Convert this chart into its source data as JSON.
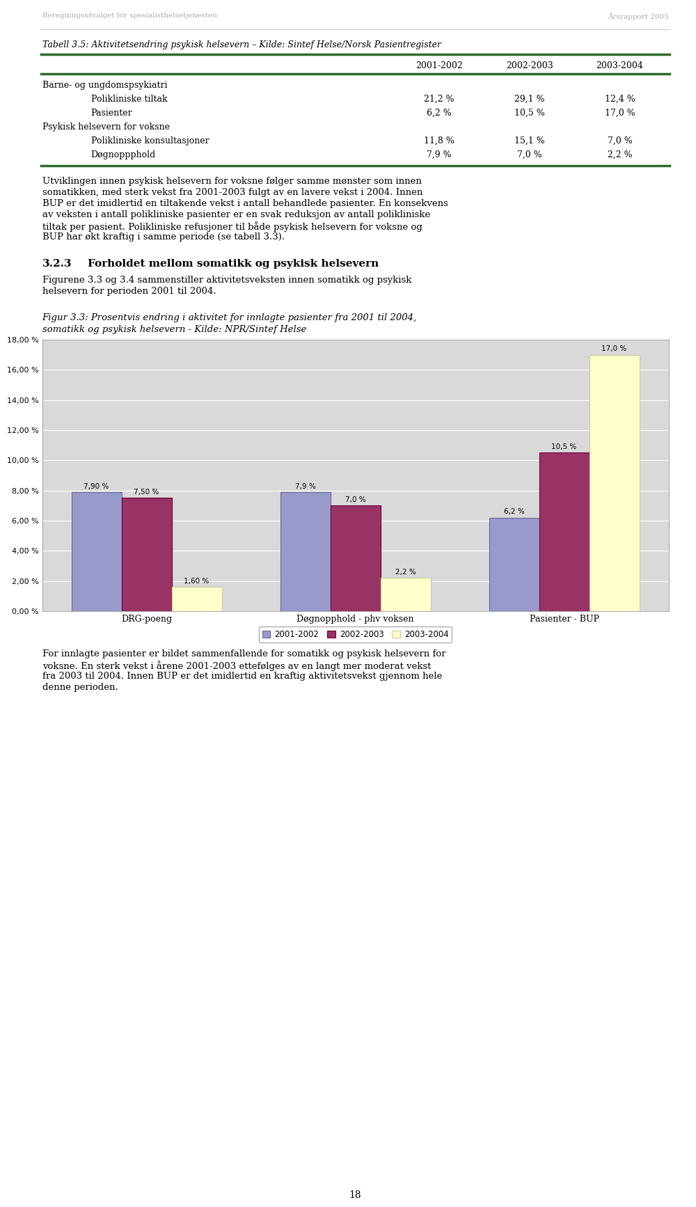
{
  "page_bg": "#ffffff",
  "header_left": "Beregningsutvalget for spesialisthelsetjenesten",
  "header_right": "Årsrapport 2005",
  "header_color": "#aaaaaa",
  "table_title": "Tabell 3.5: Aktivitetsendring psykisk helsevern – Kilde: Sintef Helse/Norsk Pasientregister",
  "table_col_headers": [
    "2001-2002",
    "2002-2003",
    "2003-2004"
  ],
  "table_rows": [
    [
      "Barne- og ungdomspsykiatri",
      "",
      "",
      ""
    ],
    [
      "Polikliniske tiltak",
      "21,2 %",
      "29,1 %",
      "12,4 %"
    ],
    [
      "Pasienter",
      "6,2 %",
      "10,5 %",
      "17,0 %"
    ],
    [
      "Psykisk helsevern for voksne",
      "",
      "",
      ""
    ],
    [
      "Polikliniske konsultasjoner",
      "11,8 %",
      "15,1 %",
      "7,0 %"
    ],
    [
      "Døgnoppphold",
      "7,9 %",
      "7,0 %",
      "2,2 %"
    ]
  ],
  "table_row_indent": [
    false,
    true,
    true,
    false,
    true,
    true
  ],
  "table_green": "#2d6a2d",
  "lines1": [
    "Utviklingen innen psykisk helsevern for voksne følger samme mønster som innen",
    "somatikken, med sterk vekst fra 2001-2003 fulgt av en lavere vekst i 2004. Innen",
    "BUP er det imidlertid en tiltakende vekst i antall behandlede pasienter. En konsekvens",
    "av veksten i antall polikliniske pasienter er en svak reduksjon av antall polikliniske",
    "tiltak per pasient. Polikliniske refusjoner til både psykisk helsevern for voksne og",
    "BUP har økt kraftig i samme periode (se tabell 3.3)."
  ],
  "section_num": "3.2.3",
  "section_title": "Forholdet mellom somatikk og psykisk helsevern",
  "lines2": [
    "Figurene 3.3 og 3.4 sammenstiller aktivitetsveksten innen somatikk og psykisk",
    "helsevern for perioden 2001 til 2004."
  ],
  "fig_title_line1": "Figur 3.3: Prosentvis endring i aktivitet for innlagte pasienter fra 2001 til 2004,",
  "fig_title_line2": "somatikk og psykisk helsevern - Kilde: NPR/Sintef Helse",
  "categories": [
    "DRG-poeng",
    "Døgnopphold - phv voksen",
    "Pasienter - BUP"
  ],
  "series": {
    "2001-2002": [
      7.9,
      7.9,
      6.2
    ],
    "2002-2003": [
      7.5,
      7.0,
      10.5
    ],
    "2003-2004": [
      1.6,
      2.2,
      17.0
    ]
  },
  "bar_labels": {
    "2001-2002": [
      "7,90 %",
      "7,9 %",
      "6,2 %"
    ],
    "2002-2003": [
      "7,50 %",
      "7,0 %",
      "10,5 %"
    ],
    "2003-2004": [
      "1,60 %",
      "2,2 %",
      "17,0 %"
    ]
  },
  "bar_colors": {
    "2001-2002": "#9999cc",
    "2002-2003": "#993366",
    "2003-2004": "#ffffcc"
  },
  "bar_edge_colors": {
    "2001-2002": "#666699",
    "2002-2003": "#660033",
    "2003-2004": "#cccc99"
  },
  "yticks": [
    0,
    2,
    4,
    6,
    8,
    10,
    12,
    14,
    16,
    18
  ],
  "ytick_labels": [
    "0,00 %",
    "2,00 %",
    "4,00 %",
    "6,00 %",
    "8,00 %",
    "10,00 %",
    "12,00 %",
    "14,00 %",
    "16,00 %",
    "18,00 %"
  ],
  "series_keys": [
    "2001-2002",
    "2002-2003",
    "2003-2004"
  ],
  "lines3": [
    "For innlagte pasienter er bildet sammenfallende for somatikk og psykisk helsevern for",
    "voksne. En sterk vekst i årene 2001-2003 ettefølges av en langt mer moderat vekst",
    "fra 2003 til 2004. Innen BUP er det imidlertid en kraftig aktivitetsvekst gjennom hele",
    "denne perioden."
  ],
  "footer_page": "18",
  "chart_bg": "#d9d9d9"
}
